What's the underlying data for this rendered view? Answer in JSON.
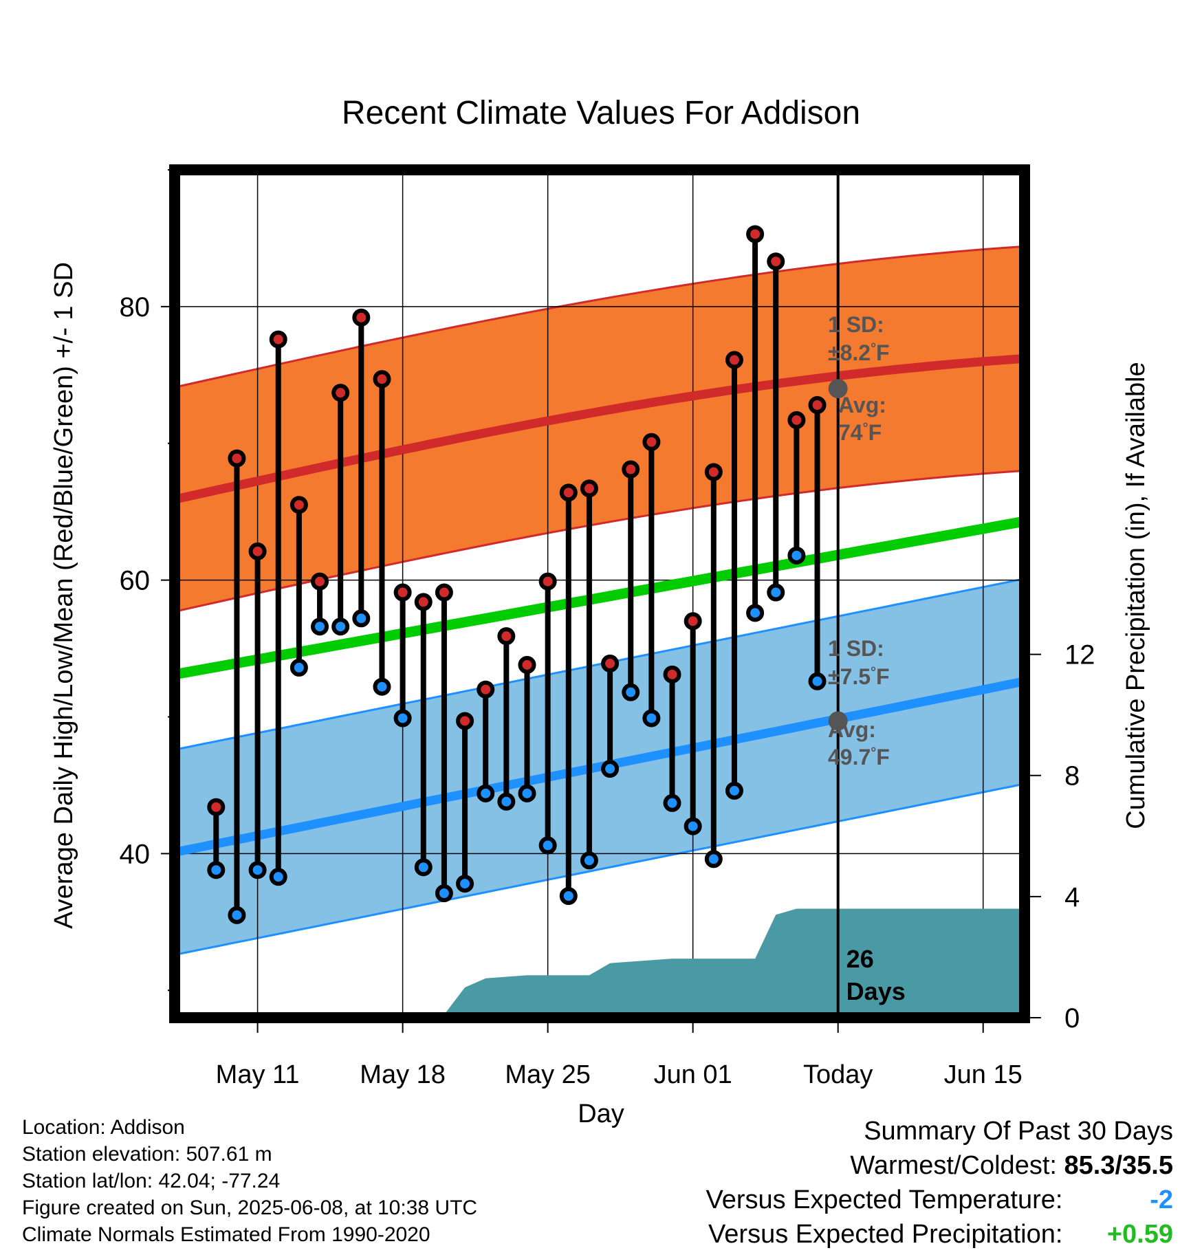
{
  "chart_data": {
    "type": "line",
    "title": "Recent Climate Values For Addison",
    "xlabel": "Day",
    "ylabel_left": "Average Daily High/Low/Mean (Red/Blue/Green) +/- 1 SD",
    "ylabel_right": "Cumulative Precipitation (in), If Available",
    "ylim_left": [
      28,
      90
    ],
    "ylim_right": [
      0,
      28
    ],
    "xlim": [
      "2025-05-07",
      "2025-06-17"
    ],
    "yticks_left": [
      40,
      60,
      80
    ],
    "yticks_right": [
      0,
      4,
      8,
      12
    ],
    "xticks": [
      {
        "date": "2025-05-11",
        "label": "May 11"
      },
      {
        "date": "2025-05-18",
        "label": "May 18"
      },
      {
        "date": "2025-05-25",
        "label": "May 25"
      },
      {
        "date": "2025-06-01",
        "label": "Jun 01"
      },
      {
        "date": "2025-06-08",
        "label": "Today"
      },
      {
        "date": "2025-06-15",
        "label": "Jun 15"
      }
    ],
    "today": "2025-06-08",
    "today_label": "26\nDays",
    "high_color": "#d02a2a",
    "low_color": "#1e90ff",
    "mean_color": "#00cc00",
    "high_band_color": "#f47a30",
    "low_band_color": "#85c1e5",
    "precip_color": "#4a9aa5",
    "normal_high": {
      "start": 65.9,
      "end": 76.2,
      "sd": 8.2,
      "today_value": 74,
      "sd_label": "1 SD:",
      "sd_text": "±8.2",
      "avg_label": "Avg:",
      "avg_text": "74",
      "unit": "°F"
    },
    "normal_low": {
      "start": 40.1,
      "end": 52.6,
      "sd": 7.5,
      "today_value": 49.7,
      "sd_label": "1 SD:",
      "sd_text": "±7.5",
      "avg_label": "Avg:",
      "avg_text": "49.7",
      "unit": "°F"
    },
    "normal_mean": {
      "start": 53.1,
      "end": 64.3
    },
    "days": [
      {
        "date": "2025-05-09",
        "high": 43.4,
        "low": 38.8
      },
      {
        "date": "2025-05-10",
        "high": 68.9,
        "low": 35.5
      },
      {
        "date": "2025-05-11",
        "high": 62.1,
        "low": 38.8
      },
      {
        "date": "2025-05-12",
        "high": 77.6,
        "low": 38.3
      },
      {
        "date": "2025-05-13",
        "high": 65.5,
        "low": 53.6
      },
      {
        "date": "2025-05-14",
        "high": 59.9,
        "low": 56.6
      },
      {
        "date": "2025-05-15",
        "high": 73.7,
        "low": 56.6
      },
      {
        "date": "2025-05-16",
        "high": 79.2,
        "low": 57.2
      },
      {
        "date": "2025-05-17",
        "high": 74.7,
        "low": 52.2
      },
      {
        "date": "2025-05-18",
        "high": 59.1,
        "low": 49.9
      },
      {
        "date": "2025-05-19",
        "high": 58.4,
        "low": 39.0
      },
      {
        "date": "2025-05-20",
        "high": 59.1,
        "low": 37.1
      },
      {
        "date": "2025-05-21",
        "high": 49.7,
        "low": 37.8
      },
      {
        "date": "2025-05-22",
        "high": 52.0,
        "low": 44.4
      },
      {
        "date": "2025-05-23",
        "high": 55.9,
        "low": 43.8
      },
      {
        "date": "2025-05-24",
        "high": 53.8,
        "low": 44.4
      },
      {
        "date": "2025-05-25",
        "high": 59.9,
        "low": 40.6
      },
      {
        "date": "2025-05-26",
        "high": 66.4,
        "low": 36.9
      },
      {
        "date": "2025-05-27",
        "high": 66.7,
        "low": 39.5
      },
      {
        "date": "2025-05-28",
        "high": 53.9,
        "low": 46.2
      },
      {
        "date": "2025-05-29",
        "high": 68.1,
        "low": 51.8
      },
      {
        "date": "2025-05-30",
        "high": 70.1,
        "low": 49.9
      },
      {
        "date": "2025-05-31",
        "high": 53.1,
        "low": 43.7
      },
      {
        "date": "2025-06-01",
        "high": 57.0,
        "low": 42.0
      },
      {
        "date": "2025-06-02",
        "high": 67.9,
        "low": 39.6
      },
      {
        "date": "2025-06-03",
        "high": 76.1,
        "low": 44.6
      },
      {
        "date": "2025-06-04",
        "high": 85.3,
        "low": 57.6
      },
      {
        "date": "2025-06-05",
        "high": 83.3,
        "low": 59.1
      },
      {
        "date": "2025-06-06",
        "high": 71.7,
        "low": 61.8
      },
      {
        "date": "2025-06-07",
        "high": 72.8,
        "low": 52.6
      }
    ],
    "precip_cumulative": [
      {
        "date": "2025-05-07",
        "value": 0.0
      },
      {
        "date": "2025-05-13",
        "value": 0.0
      },
      {
        "date": "2025-05-14",
        "value": 0.1
      },
      {
        "date": "2025-05-20",
        "value": 0.1
      },
      {
        "date": "2025-05-21",
        "value": 1.0
      },
      {
        "date": "2025-05-22",
        "value": 1.3
      },
      {
        "date": "2025-05-24",
        "value": 1.4
      },
      {
        "date": "2025-05-27",
        "value": 1.4
      },
      {
        "date": "2025-05-28",
        "value": 1.8
      },
      {
        "date": "2025-05-29",
        "value": 1.85
      },
      {
        "date": "2025-05-31",
        "value": 1.95
      },
      {
        "date": "2025-06-04",
        "value": 1.95
      },
      {
        "date": "2025-06-05",
        "value": 3.4
      },
      {
        "date": "2025-06-06",
        "value": 3.6
      },
      {
        "date": "2025-06-17",
        "value": 3.6
      }
    ]
  },
  "station_info": {
    "location": "Location: Addison",
    "elevation": "Station elevation: 507.61 m",
    "latlon": "Station lat/lon: 42.04; -77.24",
    "created": "Figure created on Sun, 2025-06-08, at 10:38 UTC",
    "normals": "Climate Normals Estimated From 1990-2020"
  },
  "summary": {
    "title": "Summary Of Past 30 Days",
    "warm_cold_label": "Warmest/Coldest:",
    "warm_cold_value": "85.3/35.5",
    "temp_label": "Versus Expected Temperature:",
    "temp_value": "-2",
    "temp_color": "#1e90ff",
    "precip_label": "Versus Expected Precipitation:",
    "precip_value": "+0.59",
    "precip_color": "#22bb22"
  }
}
